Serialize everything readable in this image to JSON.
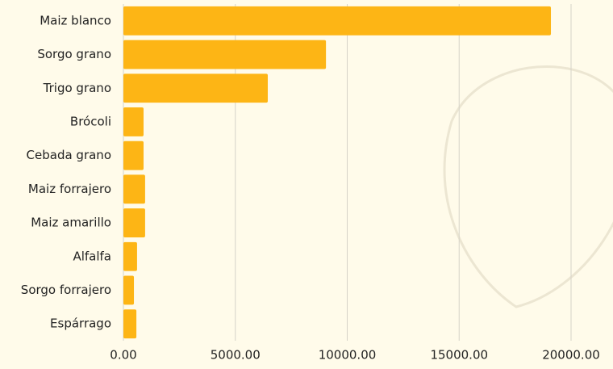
{
  "chart_data": {
    "type": "hbar",
    "categories": [
      "Maiz blanco",
      "Sorgo grano",
      "Trigo grano",
      "Brócoli",
      "Cebada grano",
      "Maiz forrajero",
      "Maiz amarillo",
      "Alfalfa",
      "Sorgo forrajero",
      "Espárrago"
    ],
    "values": [
      19100,
      9050,
      6450,
      900,
      900,
      970,
      970,
      610,
      470,
      580
    ],
    "color": "#fdb515",
    "xlim": [
      0,
      20000
    ],
    "xticks": [
      {
        "value": 0,
        "label": "0.00"
      },
      {
        "value": 5000,
        "label": "5000.00"
      },
      {
        "value": 10000,
        "label": "10000.00"
      },
      {
        "value": 15000,
        "label": "15000.00"
      },
      {
        "value": 20000,
        "label": "20000.00"
      }
    ],
    "grid": true
  }
}
